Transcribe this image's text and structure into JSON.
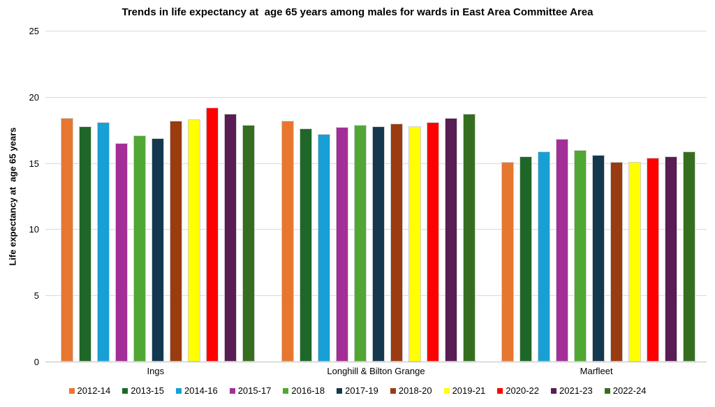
{
  "chart_data": {
    "type": "bar",
    "title": "Trends in life expectancy at  age 65 years among males for wards in East Area Committee Area",
    "ylabel": "Life expectancy at  age 65 years",
    "xlabel": "",
    "ylim": [
      0,
      25
    ],
    "yticks": [
      0,
      5,
      10,
      15,
      20,
      25
    ],
    "grid": true,
    "legend_position": "bottom",
    "categories": [
      "Ings",
      "Longhill & Bilton Grange",
      "Marfleet"
    ],
    "series": [
      {
        "name": "2012-14",
        "color": "#E7762F",
        "values": [
          18.4,
          18.2,
          15.1
        ]
      },
      {
        "name": "2013-15",
        "color": "#1E6728",
        "values": [
          17.8,
          17.6,
          15.5
        ]
      },
      {
        "name": "2014-16",
        "color": "#189FD5",
        "values": [
          18.1,
          17.2,
          15.9
        ]
      },
      {
        "name": "2015-17",
        "color": "#A32E98",
        "values": [
          16.5,
          17.7,
          16.8
        ]
      },
      {
        "name": "2016-18",
        "color": "#50A733",
        "values": [
          17.1,
          17.9,
          16.0
        ]
      },
      {
        "name": "2017-19",
        "color": "#14384F",
        "values": [
          16.9,
          17.8,
          15.6
        ]
      },
      {
        "name": "2018-20",
        "color": "#9A3B10",
        "values": [
          18.2,
          18.0,
          15.1
        ]
      },
      {
        "name": "2019-21",
        "color": "#FFFF00",
        "values": [
          18.3,
          17.8,
          15.1
        ]
      },
      {
        "name": "2020-22",
        "color": "#FE0000",
        "values": [
          19.2,
          18.1,
          15.4
        ]
      },
      {
        "name": "2021-23",
        "color": "#5A1C55",
        "values": [
          18.7,
          18.4,
          15.5
        ]
      },
      {
        "name": "2022-24",
        "color": "#366E20",
        "values": [
          17.9,
          18.7,
          15.9
        ]
      }
    ]
  }
}
